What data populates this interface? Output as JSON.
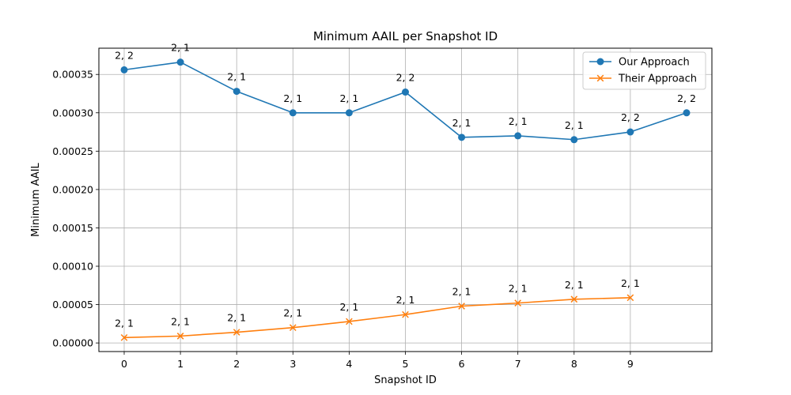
{
  "chart_data": {
    "type": "line",
    "title": "Minimum AAIL per Snapshot ID",
    "xlabel": "Snapshot ID",
    "ylabel": "Minimum AAIL",
    "x_ticks": [
      0,
      1,
      2,
      3,
      4,
      5,
      6,
      7,
      8,
      9
    ],
    "y_ticks": [
      "0.00000",
      "0.00005",
      "0.00010",
      "0.00015",
      "0.00020",
      "0.00025",
      "0.00030",
      "0.00035"
    ],
    "xlim": [
      -0.45,
      10.45
    ],
    "ylim": [
      -1.12e-05,
      0.0003842
    ],
    "grid": true,
    "legend_position": "top-right",
    "series": [
      {
        "name": "Our Approach",
        "color": "#1f77b4",
        "marker": "circle",
        "x": [
          0,
          1,
          2,
          3,
          4,
          5,
          6,
          7,
          8,
          9,
          10
        ],
        "y": [
          0.000356,
          0.000366,
          0.000328,
          0.0003,
          0.0003,
          0.000327,
          0.000268,
          0.00027,
          0.000265,
          0.000275,
          0.0003
        ],
        "labels": [
          "2, 2",
          "2, 1",
          "2, 1",
          "2, 1",
          "2, 1",
          "2, 2",
          "2, 1",
          "2, 1",
          "2, 1",
          "2, 2",
          "2, 2"
        ]
      },
      {
        "name": "Their Approach",
        "color": "#ff7f0e",
        "marker": "x",
        "x": [
          0,
          1,
          2,
          3,
          4,
          5,
          6,
          7,
          8,
          9
        ],
        "y": [
          7e-06,
          9e-06,
          1.4e-05,
          2e-05,
          2.8e-05,
          3.7e-05,
          4.8e-05,
          5.2e-05,
          5.7e-05,
          5.9e-05
        ],
        "labels": [
          "2, 1",
          "2, 1",
          "2, 1",
          "2, 1",
          "2, 1",
          "2, 1",
          "2, 1",
          "2, 1",
          "2, 1",
          "2, 1"
        ]
      }
    ]
  }
}
